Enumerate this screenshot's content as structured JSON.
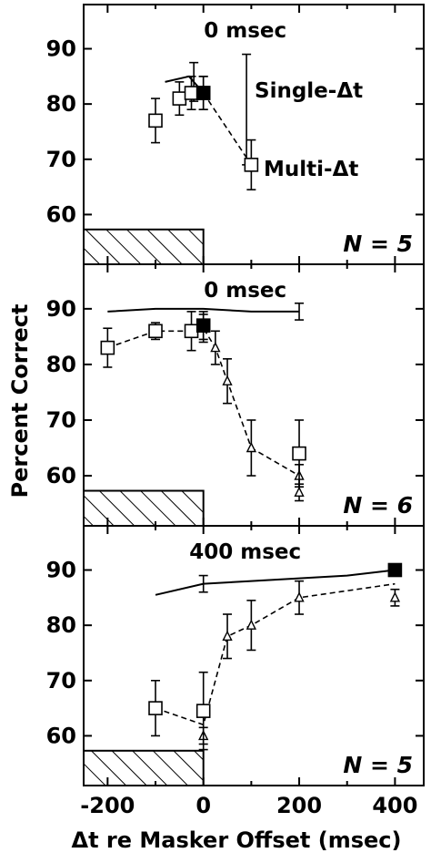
{
  "chart_data": {
    "type": "line",
    "ylabel": "Percent Correct",
    "xlabel": "Δt re Masker Offset (msec)",
    "xlim": [
      -250,
      460
    ],
    "xticks": [
      -200,
      0,
      200,
      400
    ],
    "ylim": [
      51,
      98
    ],
    "yticks": [
      60,
      70,
      80,
      90
    ],
    "panels": [
      {
        "title": "0 msec",
        "n_label": "N = 5",
        "annotations": [
          "Single-Δt",
          "Multi-Δt"
        ],
        "single_line": {
          "x": [
            -80,
            -30,
            0
          ],
          "y": [
            84,
            85,
            82
          ]
        },
        "single_point": {
          "x": 0,
          "y": 82,
          "err": 3
        },
        "single_err": [
          {
            "x": 90,
            "y": 79,
            "err": 10
          },
          {
            "x": -20,
            "y": 84,
            "err": 3.5
          }
        ],
        "multi": [
          {
            "x": -100,
            "y": 77,
            "err": 4
          },
          {
            "x": -50,
            "y": 81,
            "err": 3
          },
          {
            "x": -25,
            "y": 82,
            "err": 3
          },
          {
            "x": 0,
            "y": 82,
            "err": 3
          },
          {
            "x": 100,
            "y": 69,
            "err": 4.5
          }
        ],
        "triangles": []
      },
      {
        "title": "0 msec",
        "n_label": "N = 6",
        "annotations": [],
        "single_line": {
          "x": [
            -200,
            -100,
            0,
            100,
            200
          ],
          "y": [
            89.5,
            90,
            90,
            89.5,
            89.5
          ]
        },
        "single_point": {
          "x": 0,
          "y": 87,
          "err": 2.5
        },
        "single_err": [
          {
            "x": 200,
            "y": 89.5,
            "err": 1.5
          }
        ],
        "multi": [
          {
            "x": -200,
            "y": 83,
            "err": 3.5
          },
          {
            "x": -100,
            "y": 86,
            "err": 1.5
          },
          {
            "x": -25,
            "y": 86,
            "err": 3.5
          },
          {
            "x": 200,
            "y": 64,
            "err": 6
          }
        ],
        "triangles": [
          {
            "x": 0,
            "y": 86.5,
            "err": 2.5
          },
          {
            "x": 25,
            "y": 83,
            "err": 3
          },
          {
            "x": 50,
            "y": 77,
            "err": 4
          },
          {
            "x": 100,
            "y": 65,
            "err": 5
          },
          {
            "x": 200,
            "y": 60,
            "err": 2
          },
          {
            "x": 200,
            "y": 57,
            "err": 1.5
          }
        ],
        "multi_dash": {
          "x": [
            -200,
            -100,
            -25,
            0,
            25,
            50,
            100,
            200
          ],
          "y": [
            83,
            86,
            86,
            86.5,
            83,
            77,
            65,
            60
          ]
        }
      },
      {
        "title": "400 msec",
        "n_label": "N = 5",
        "annotations": [],
        "single_line": {
          "x": [
            -100,
            0,
            100,
            200,
            300,
            400
          ],
          "y": [
            85.5,
            87.5,
            88,
            88.5,
            89,
            90
          ]
        },
        "single_point": {
          "x": 400,
          "y": 90,
          "err": 0
        },
        "single_err": [
          {
            "x": 0,
            "y": 87.5,
            "err": 1.5
          }
        ],
        "multi": [
          {
            "x": -100,
            "y": 65,
            "err": 5
          },
          {
            "x": 0,
            "y": 64.5,
            "err": 7
          }
        ],
        "triangles": [
          {
            "x": 0,
            "y": 60,
            "err": 1.5
          },
          {
            "x": 50,
            "y": 78,
            "err": 4
          },
          {
            "x": 100,
            "y": 80,
            "err": 4.5
          },
          {
            "x": 200,
            "y": 85,
            "err": 3
          },
          {
            "x": 400,
            "y": 85,
            "err": 1.5
          }
        ],
        "multi_dash": {
          "x": [
            -100,
            0,
            50,
            100,
            200,
            400
          ],
          "y": [
            65,
            62,
            78,
            80,
            85,
            87.5
          ]
        }
      }
    ]
  }
}
